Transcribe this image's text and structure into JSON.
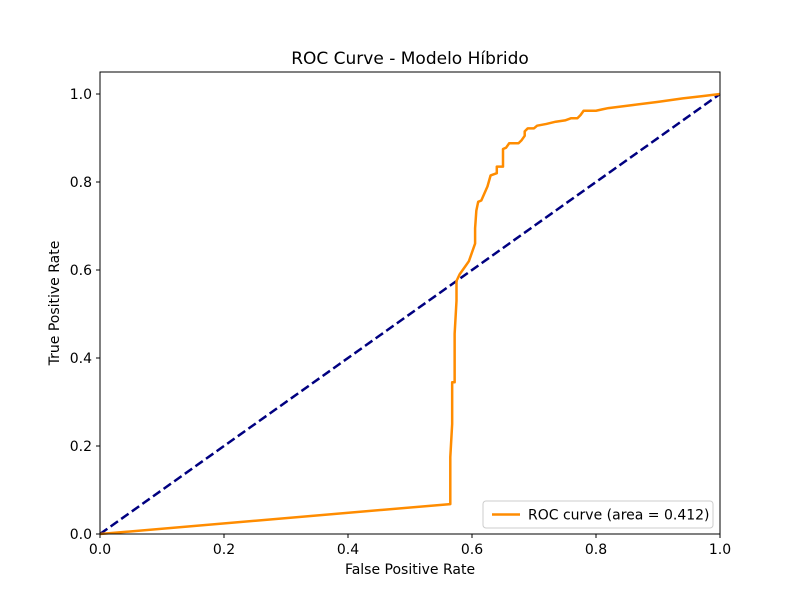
{
  "chart_data": {
    "type": "line",
    "title": "ROC Curve - Modelo Híbrido",
    "xlabel": "False Positive Rate",
    "ylabel": "True Positive Rate",
    "xlim": [
      0.0,
      1.0
    ],
    "ylim": [
      0.0,
      1.05
    ],
    "x_ticks": [
      "0.0",
      "0.2",
      "0.4",
      "0.6",
      "0.8",
      "1.0"
    ],
    "y_ticks": [
      "0.0",
      "0.2",
      "0.4",
      "0.6",
      "0.8",
      "1.0"
    ],
    "x_tick_values": [
      0.0,
      0.2,
      0.4,
      0.6,
      0.8,
      1.0
    ],
    "y_tick_values": [
      0.0,
      0.2,
      0.4,
      0.6,
      0.8,
      1.0
    ],
    "grid": false,
    "legend_position": "lower-right",
    "series": [
      {
        "name": "ROC curve (area = 0.412)",
        "color": "#ff8c00",
        "style": "solid",
        "points": [
          [
            0.0,
            0.0
          ],
          [
            0.565,
            0.068
          ],
          [
            0.565,
            0.175
          ],
          [
            0.568,
            0.25
          ],
          [
            0.568,
            0.345
          ],
          [
            0.572,
            0.345
          ],
          [
            0.572,
            0.455
          ],
          [
            0.575,
            0.53
          ],
          [
            0.575,
            0.575
          ],
          [
            0.58,
            0.59
          ],
          [
            0.59,
            0.61
          ],
          [
            0.595,
            0.62
          ],
          [
            0.605,
            0.66
          ],
          [
            0.605,
            0.695
          ],
          [
            0.607,
            0.735
          ],
          [
            0.61,
            0.755
          ],
          [
            0.615,
            0.758
          ],
          [
            0.625,
            0.79
          ],
          [
            0.63,
            0.815
          ],
          [
            0.64,
            0.82
          ],
          [
            0.64,
            0.835
          ],
          [
            0.65,
            0.835
          ],
          [
            0.65,
            0.875
          ],
          [
            0.655,
            0.878
          ],
          [
            0.66,
            0.888
          ],
          [
            0.675,
            0.888
          ],
          [
            0.68,
            0.895
          ],
          [
            0.685,
            0.905
          ],
          [
            0.685,
            0.915
          ],
          [
            0.69,
            0.922
          ],
          [
            0.7,
            0.922
          ],
          [
            0.705,
            0.928
          ],
          [
            0.72,
            0.932
          ],
          [
            0.735,
            0.937
          ],
          [
            0.75,
            0.94
          ],
          [
            0.76,
            0.945
          ],
          [
            0.77,
            0.945
          ],
          [
            0.775,
            0.952
          ],
          [
            0.78,
            0.962
          ],
          [
            0.8,
            0.962
          ],
          [
            0.81,
            0.965
          ],
          [
            0.82,
            0.968
          ],
          [
            0.86,
            0.975
          ],
          [
            0.9,
            0.982
          ],
          [
            0.94,
            0.99
          ],
          [
            0.97,
            0.995
          ],
          [
            1.0,
            1.0
          ]
        ]
      },
      {
        "name": "",
        "color": "#000080",
        "style": "dashed",
        "points": [
          [
            0.0,
            0.0
          ],
          [
            1.0,
            1.0
          ]
        ]
      }
    ],
    "legend": {
      "label": "ROC curve (area = 0.412)",
      "color": "#ff8c00"
    }
  }
}
